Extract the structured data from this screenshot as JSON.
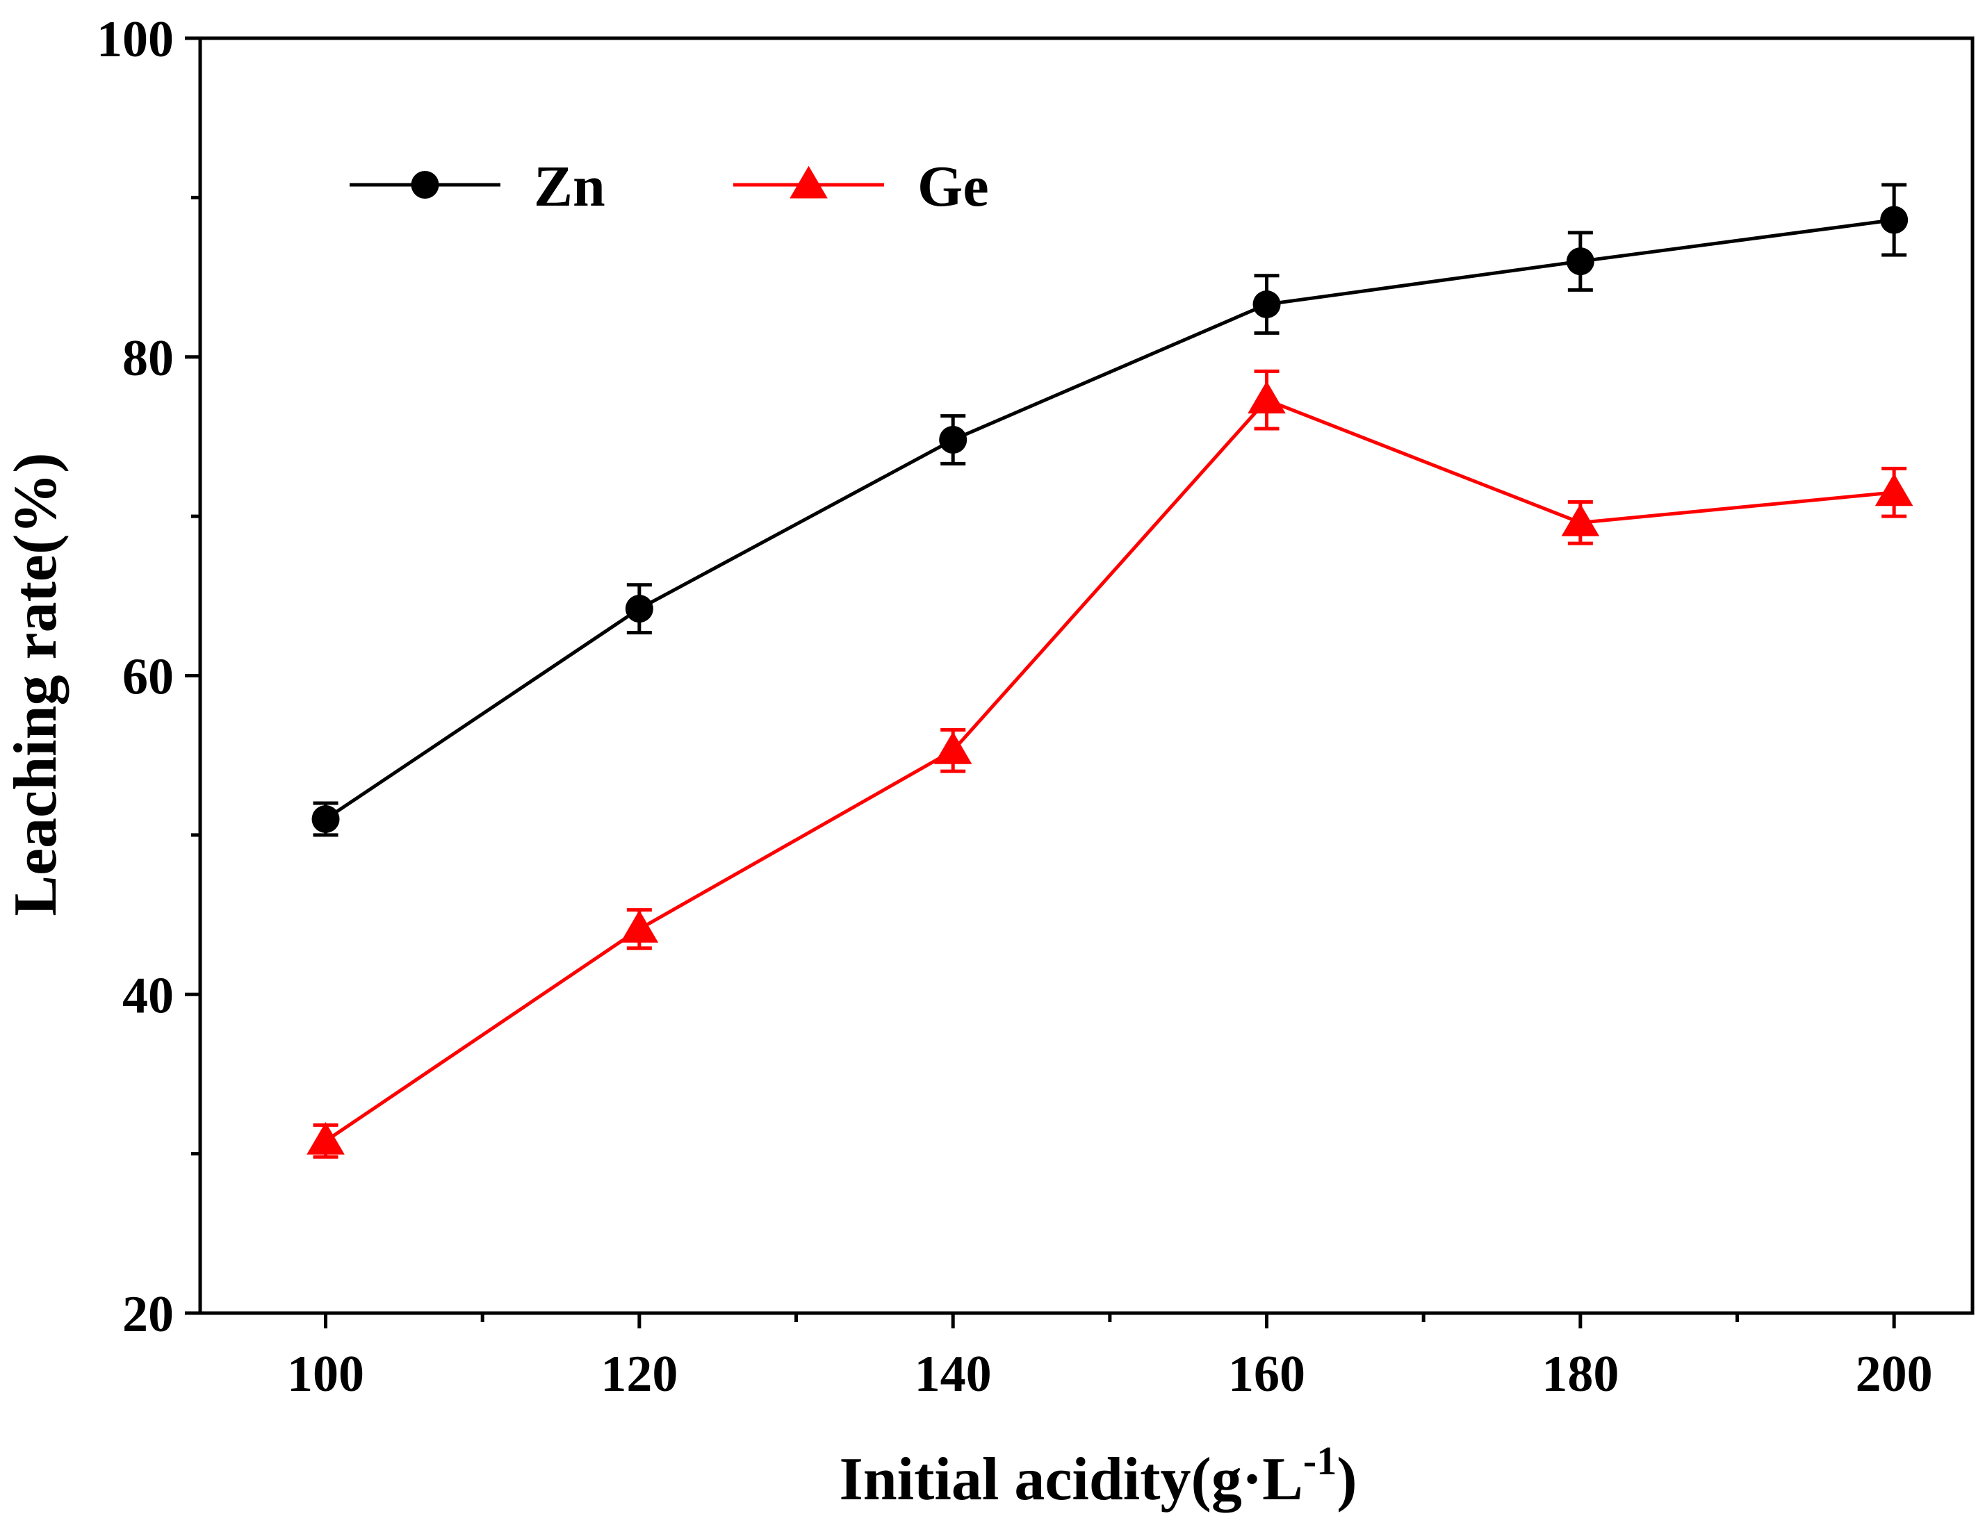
{
  "chart_data": {
    "type": "line",
    "title": "",
    "xlabel": "Initial acidity(g·L",
    "xlabel_sup": "-1",
    "xlabel_close": ")",
    "ylabel": "Leaching rate(%)",
    "x": [
      100,
      120,
      140,
      160,
      180,
      200
    ],
    "xlim": [
      92,
      205
    ],
    "ylim": [
      20,
      100
    ],
    "xticks": [
      100,
      120,
      140,
      160,
      180,
      200
    ],
    "xticks_minor": [
      110,
      130,
      150,
      170,
      190
    ],
    "yticks": [
      20,
      40,
      60,
      80,
      100
    ],
    "yticks_minor": [
      30,
      50,
      70,
      90
    ],
    "grid": false,
    "legend_position": "top-left",
    "series": [
      {
        "name": "Zn",
        "color": "#000000",
        "marker": "circle",
        "values": [
          51.0,
          64.2,
          74.8,
          83.3,
          86.0,
          88.6
        ],
        "errors": [
          1.0,
          1.5,
          1.5,
          1.8,
          1.8,
          2.2
        ]
      },
      {
        "name": "Ge",
        "color": "#ff0000",
        "marker": "triangle",
        "values": [
          30.8,
          44.1,
          55.3,
          77.3,
          69.6,
          71.5
        ],
        "errors": [
          1.0,
          1.2,
          1.3,
          1.8,
          1.3,
          1.5
        ]
      }
    ]
  }
}
